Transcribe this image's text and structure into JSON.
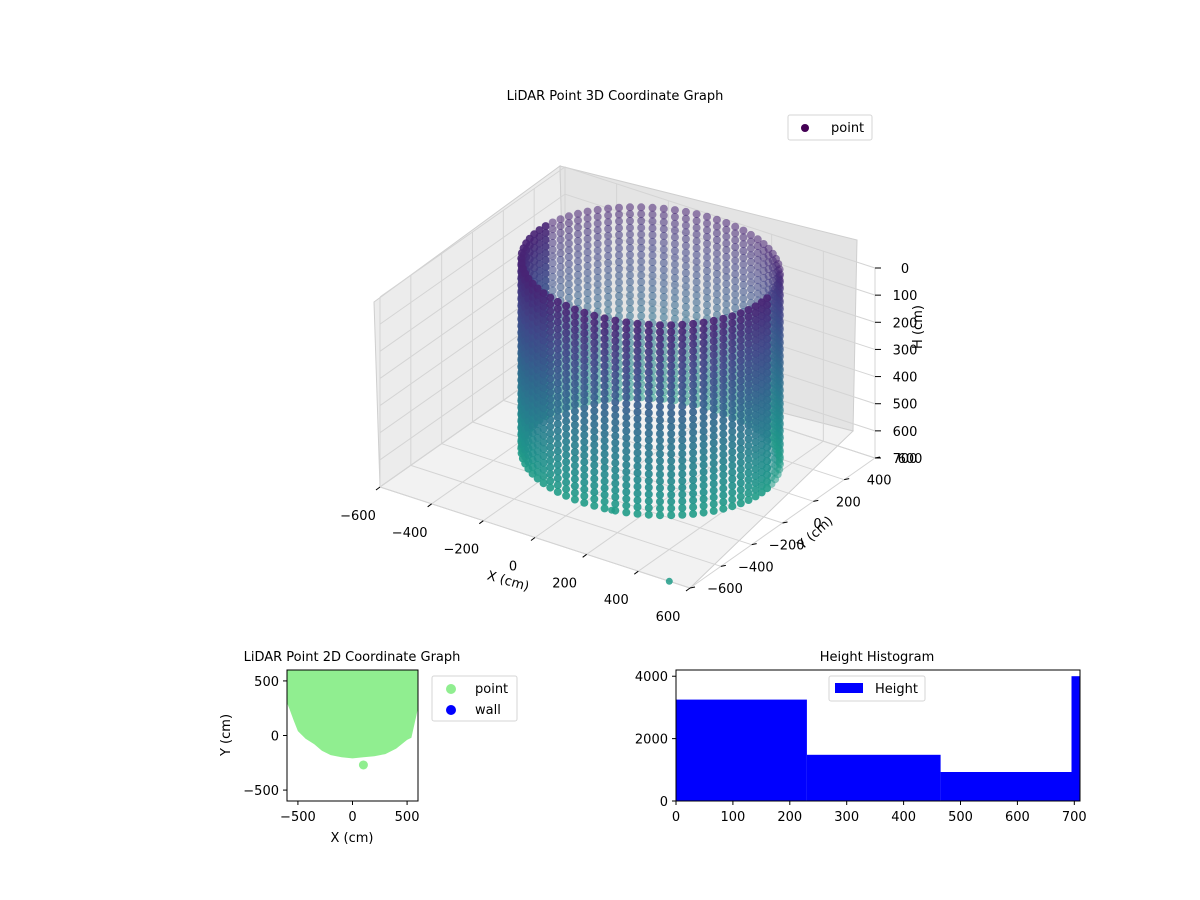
{
  "figure": {
    "background": "#ffffff"
  },
  "chart_data": [
    {
      "type": "scatter",
      "projection": "3d",
      "title": "LiDAR Point 3D Coordinate Graph",
      "xlabel": "X (cm)",
      "ylabel": "Y (cm)",
      "zlabel": "H (cm)",
      "xlim": [
        -600,
        600
      ],
      "ylim": [
        -600,
        600
      ],
      "zlim": [
        700,
        0
      ],
      "x_ticks": [
        -600,
        -400,
        -200,
        0,
        200,
        400,
        600
      ],
      "y_ticks": [
        -600,
        -400,
        -200,
        0,
        200,
        400,
        600
      ],
      "z_ticks": [
        0,
        100,
        200,
        300,
        400,
        500,
        600,
        700
      ],
      "x_tick_labels": [
        "−600",
        "−400",
        "−200",
        "0",
        "200",
        "400",
        "600"
      ],
      "y_tick_labels": [
        "−600",
        "−400",
        "−200",
        "0",
        "200",
        "400",
        "600"
      ],
      "z_tick_labels": [
        "0",
        "100",
        "200",
        "300",
        "400",
        "500",
        "600",
        "700"
      ],
      "colormap": "viridis",
      "marker_color": "#440154",
      "shape": "cylindrical wall of points",
      "wall": {
        "center": [
          0,
          150
        ],
        "radius": 430,
        "height_range": [
          0,
          700
        ]
      },
      "isolated_points": [
        {
          "x": 100,
          "y": -270,
          "h": 700
        },
        {
          "x": 520,
          "y": -600,
          "h": 700
        }
      ],
      "grid": true,
      "legend": {
        "position": "top-right",
        "entries": [
          {
            "label": "point",
            "color": "#440154"
          }
        ]
      }
    },
    {
      "type": "scatter",
      "title": "LiDAR Point 2D Coordinate Graph",
      "xlabel": "X (cm)",
      "ylabel": "Y (cm)",
      "xlim": [
        -600,
        600
      ],
      "ylim": [
        -600,
        600
      ],
      "x_ticks": [
        -500,
        0,
        500
      ],
      "y_ticks": [
        -500,
        0,
        500
      ],
      "x_tick_labels": [
        "−500",
        "0",
        "500"
      ],
      "y_tick_labels": [
        "−500",
        "0",
        "500"
      ],
      "series": [
        {
          "name": "point",
          "color": "#90ee90",
          "region_outline": [
            [
              -600,
              600
            ],
            [
              600,
              600
            ],
            [
              600,
              250
            ],
            [
              540,
              -20
            ],
            [
              500,
              -40
            ],
            [
              400,
              -120
            ],
            [
              300,
              -170
            ],
            [
              200,
              -190
            ],
            [
              100,
              -200
            ],
            [
              0,
              -210
            ],
            [
              -100,
              -200
            ],
            [
              -200,
              -180
            ],
            [
              -280,
              -140
            ],
            [
              -350,
              -80
            ],
            [
              -430,
              -30
            ],
            [
              -500,
              40
            ],
            [
              -540,
              140
            ],
            [
              -580,
              250
            ],
            [
              -600,
              300
            ]
          ],
          "points": [
            {
              "x": 100,
              "y": -270
            }
          ]
        },
        {
          "name": "wall",
          "color": "#0000ff",
          "points": []
        }
      ],
      "legend": {
        "position": "outside-right",
        "entries": [
          {
            "label": "point",
            "color": "#90ee90"
          },
          {
            "label": "wall",
            "color": "#0000ff"
          }
        ]
      }
    },
    {
      "type": "bar",
      "subtype": "histogram",
      "title": "Height Histogram",
      "xlim": [
        0,
        710
      ],
      "ylim": [
        0,
        4200
      ],
      "x_ticks": [
        0,
        100,
        200,
        300,
        400,
        500,
        600,
        700
      ],
      "y_ticks": [
        0,
        2000,
        4000
      ],
      "x_tick_labels": [
        "0",
        "100",
        "200",
        "300",
        "400",
        "500",
        "600",
        "700"
      ],
      "y_tick_labels": [
        "0",
        "2000",
        "4000"
      ],
      "bins": [
        {
          "x0": 0,
          "x1": 230,
          "value": 3250
        },
        {
          "x0": 230,
          "x1": 465,
          "value": 1480
        },
        {
          "x0": 465,
          "x1": 695,
          "value": 930
        },
        {
          "x0": 695,
          "x1": 710,
          "value": 4000
        }
      ],
      "series": [
        {
          "name": "Height",
          "color": "#0000ff"
        }
      ],
      "legend": {
        "position": "upper-center",
        "entries": [
          {
            "label": "Height",
            "color": "#0000ff"
          }
        ]
      }
    }
  ]
}
